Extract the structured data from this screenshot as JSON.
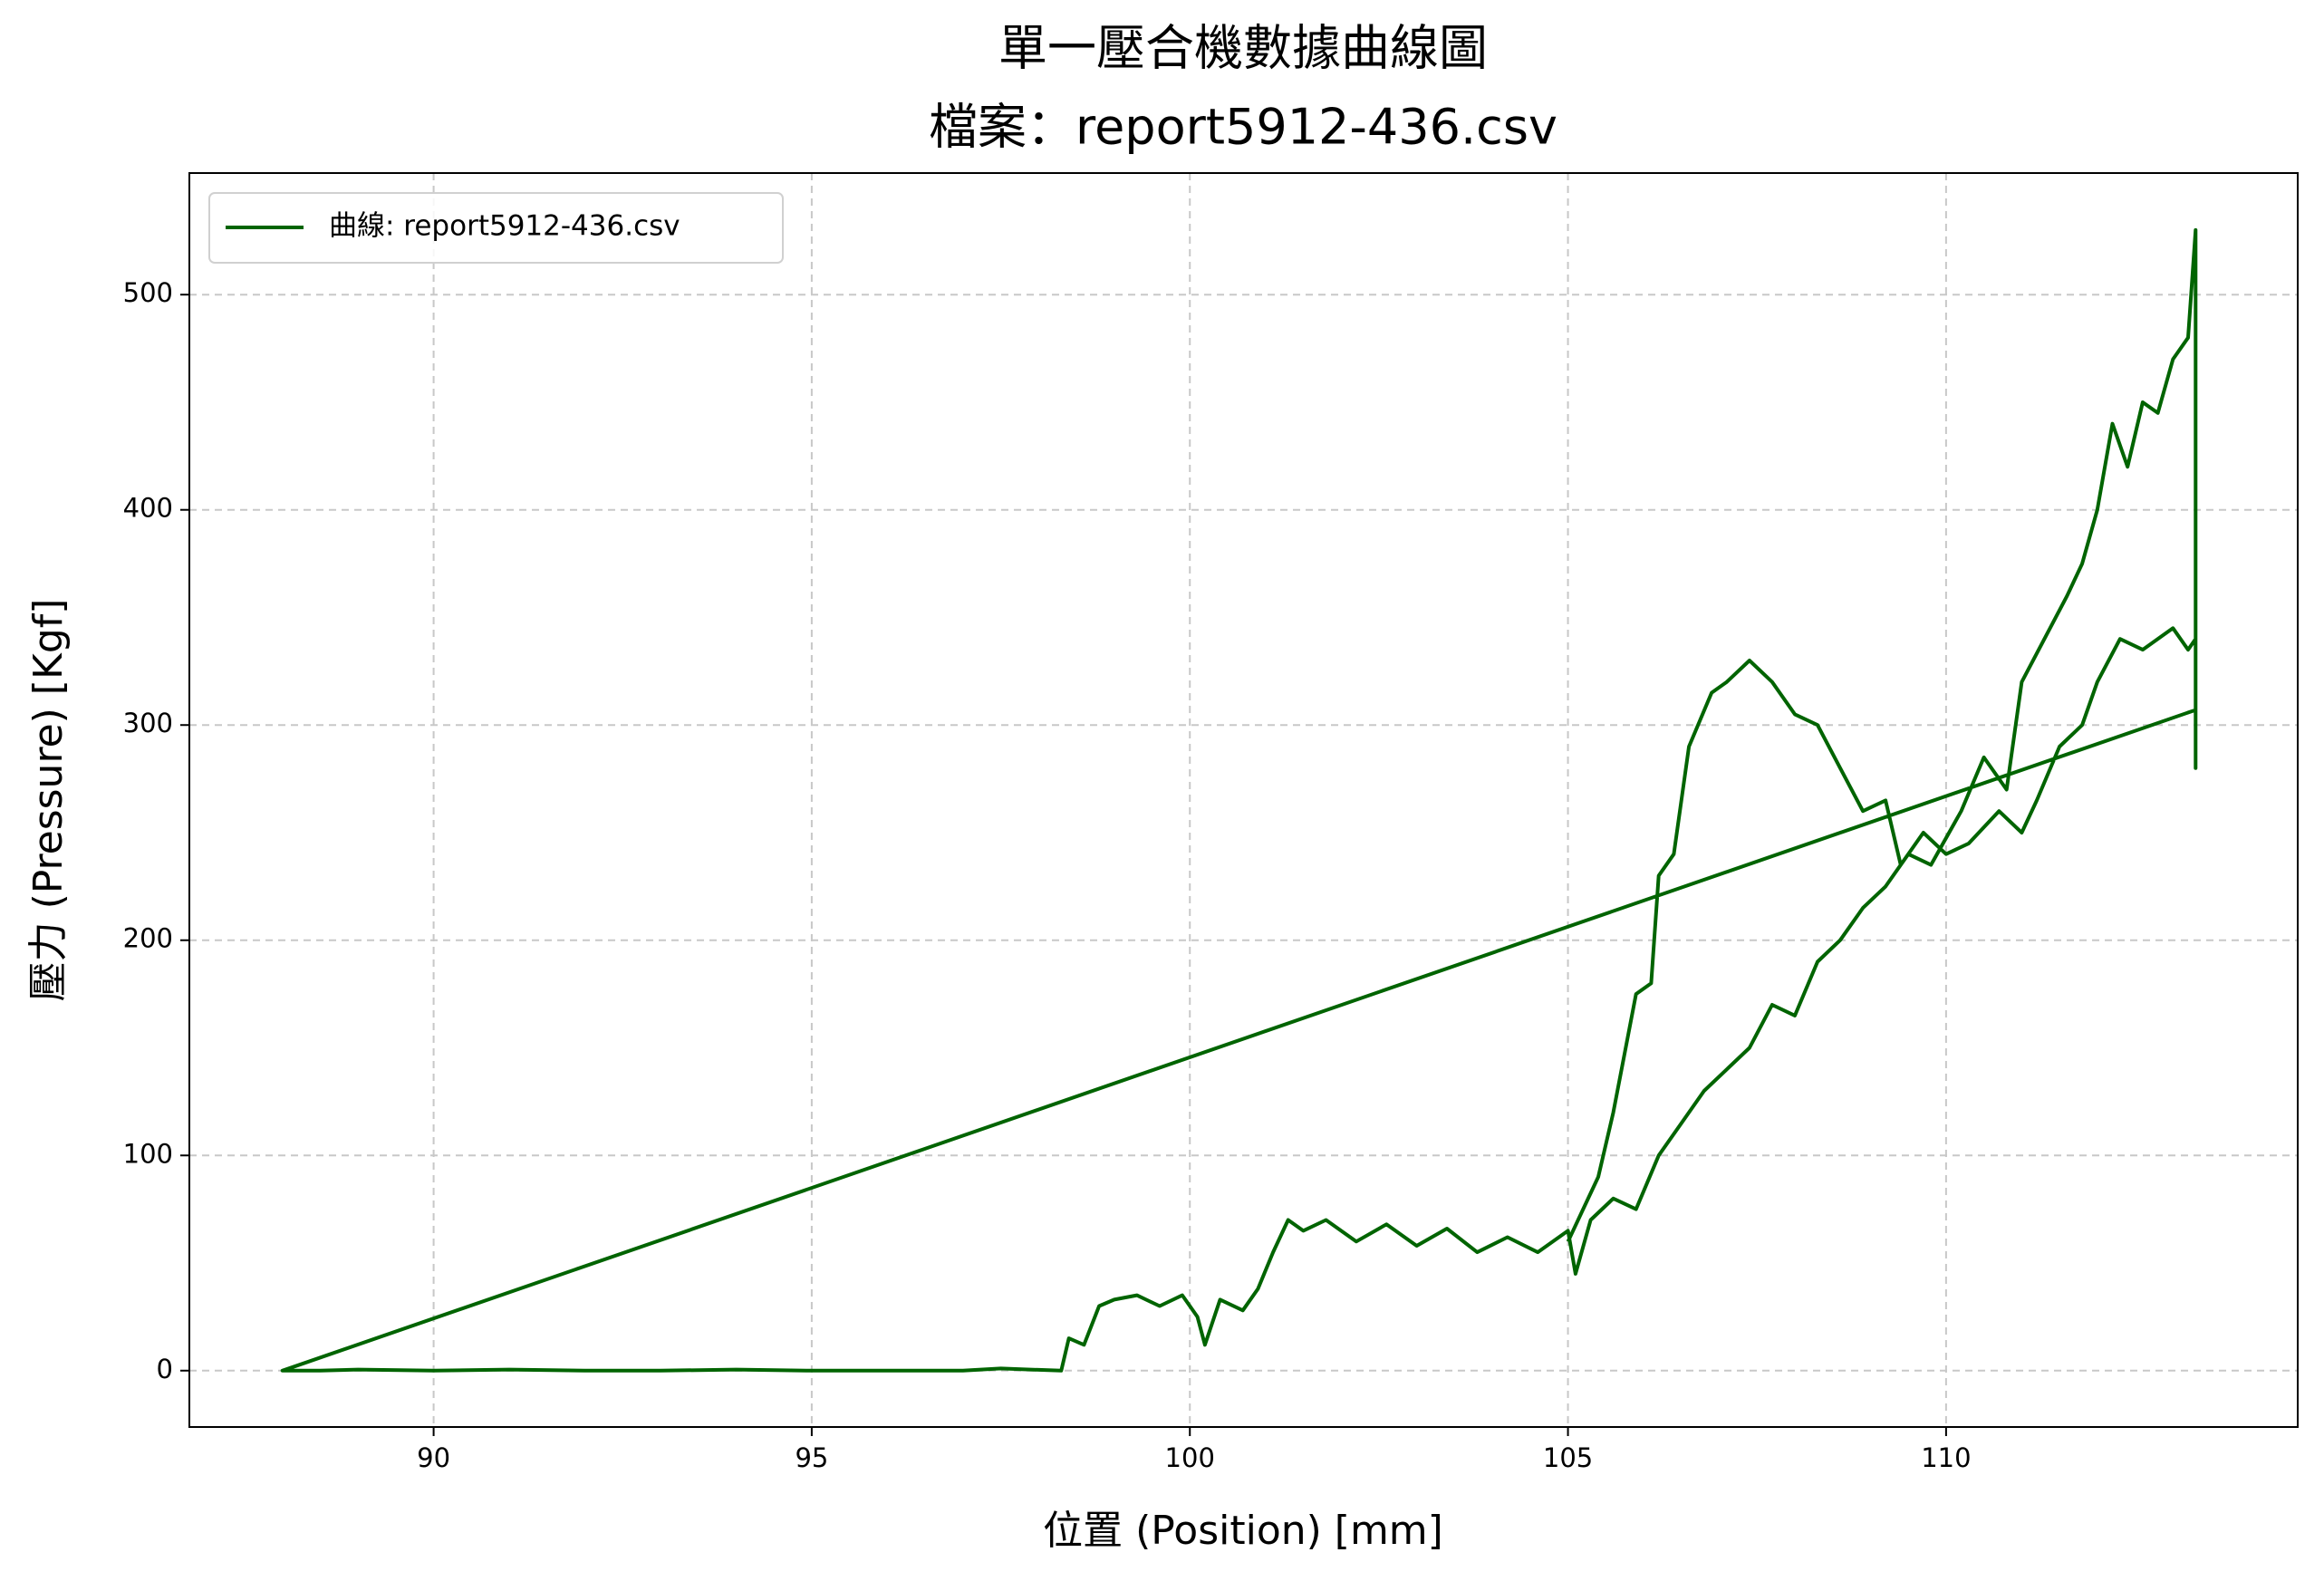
{
  "chart_data": {
    "type": "line",
    "title": "單一壓合機數據曲線圖",
    "subtitle": "檔案：report5912-436.csv",
    "x_label": "位置 (Position) [mm]",
    "y_label": "壓力 (Pressure) [Kgf]",
    "x": [
      113.3,
      88,
      88.5,
      89,
      90,
      91,
      92,
      93,
      94,
      95,
      96,
      97,
      97.5,
      98.3,
      98.4,
      98.6,
      98.8,
      99,
      99.3,
      99.6,
      99.9,
      100.1,
      100.2,
      100.4,
      100.7,
      100.9,
      101.1,
      101.3,
      101.5,
      101.8,
      102.2,
      102.6,
      103,
      103.4,
      103.8,
      104.2,
      104.6,
      105,
      105.1,
      105.3,
      105.6,
      105.9,
      106.2,
      106.5,
      106.8,
      107.1,
      107.4,
      107.7,
      108,
      108.3,
      108.6,
      108.9,
      109.2,
      109.5,
      109.8,
      110.2,
      110.5,
      110.8,
      111,
      111.3,
      111.6,
      111.8,
      112,
      112.2,
      112.4,
      112.6,
      112.8,
      113,
      113.2,
      113.3,
      113.3,
      113.3,
      113.3,
      113.2,
      113,
      112.6,
      112.3,
      112,
      111.8,
      111.5,
      111.2,
      111,
      110.7,
      110.3,
      110,
      109.7,
      109.4,
      109.2,
      108.9,
      108.6,
      108.3,
      108,
      107.7,
      107.4,
      107.1,
      106.9,
      106.6,
      106.4,
      106.2,
      106.1,
      105.9,
      105.6,
      105.4,
      105.2,
      105
    ],
    "series": [
      {
        "name": "曲線: report5912-436.csv",
        "color": "#006400",
        "values": [
          307,
          0,
          0,
          0.5,
          0,
          0.5,
          0,
          0,
          0.5,
          0,
          0,
          0,
          1,
          0,
          15,
          12,
          30,
          33,
          35,
          30,
          35,
          25,
          12,
          33,
          28,
          38,
          55,
          70,
          65,
          70,
          60,
          68,
          58,
          66,
          55,
          62,
          55,
          65,
          45,
          70,
          80,
          75,
          100,
          115,
          130,
          140,
          150,
          170,
          165,
          190,
          200,
          215,
          225,
          240,
          235,
          260,
          285,
          270,
          320,
          340,
          360,
          375,
          400,
          440,
          420,
          450,
          445,
          470,
          480,
          530,
          460,
          280,
          340,
          335,
          345,
          335,
          340,
          320,
          300,
          290,
          265,
          250,
          260,
          245,
          240,
          250,
          235,
          265,
          260,
          280,
          300,
          305,
          320,
          330,
          320,
          315,
          290,
          240,
          230,
          180,
          175,
          120,
          90,
          75,
          60
        ]
      }
    ],
    "xlim": [
      86.77,
      114.65
    ],
    "ylim": [
      -26.2,
      556.5
    ],
    "xticks": [
      90,
      95,
      100,
      105,
      110
    ],
    "yticks": [
      0,
      100,
      200,
      300,
      400,
      500
    ],
    "grid": true,
    "legend": "upper left"
  }
}
